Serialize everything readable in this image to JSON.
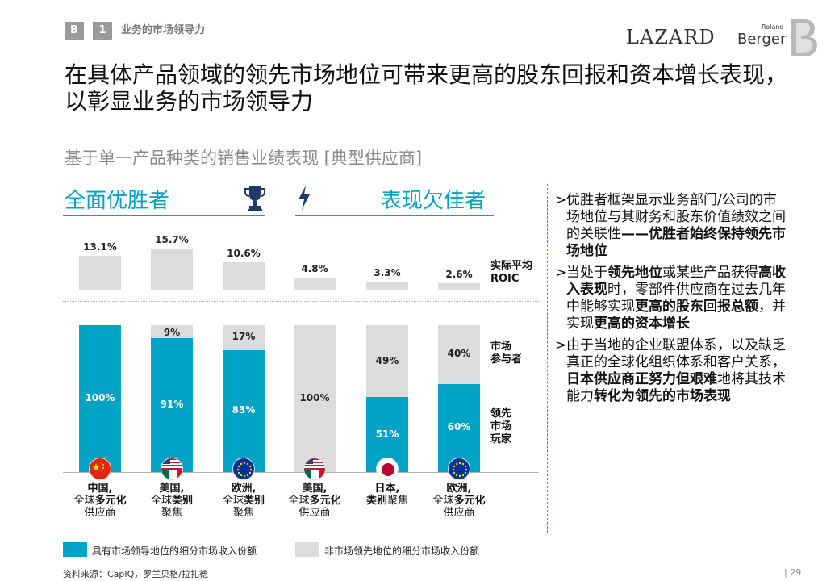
{
  "header": {
    "badge_b": "B",
    "badge_1": "1",
    "section": "业务的市场领导力",
    "logo_lazard": "LAZARD",
    "logo_roland": "Roland",
    "logo_berger": "Berger"
  },
  "title": "在具体产品领域的领先市场地位可带来更高的股东回报和资本增长表现，以彰显业务的市场领导力",
  "subtitle": "基于单一产品种类的销售业绩表现 [典型供应商]",
  "winners_heading": "全面优胜者",
  "losers_heading": "表现欠佳者",
  "row_labels": {
    "roic": [
      "实际平均",
      "ROIC"
    ],
    "participants": [
      "市场",
      "参与者"
    ],
    "leaders": [
      "领先",
      "市场",
      "玩家"
    ]
  },
  "chart_data": {
    "type": "bar",
    "title": "基于单一产品种类的销售业绩表现 [典型供应商]",
    "categories": [
      "中国, 全球多元化供应商",
      "美国, 全球类别聚焦",
      "欧洲, 全球类别聚焦",
      "美国, 全球多元化供应商",
      "日本, 类别聚焦",
      "欧洲, 全球多元化供应商"
    ],
    "roic": {
      "name": "实际平均ROIC",
      "values": [
        13.1,
        15.7,
        10.6,
        4.8,
        3.3,
        2.6
      ],
      "labels": [
        "13.1%",
        "15.7%",
        "10.6%",
        "4.8%",
        "3.3%",
        "2.6%"
      ]
    },
    "series": [
      {
        "name": "具有市场领导地位的细分市场收入份额",
        "values": [
          100,
          91,
          83,
          0,
          51,
          60
        ],
        "labels": [
          "100%",
          "91%",
          "83%",
          "",
          "51%",
          "60%"
        ],
        "color": "#00a3c4"
      },
      {
        "name": "非市场领先地位的细分市场收入份额",
        "values": [
          0,
          9,
          17,
          100,
          49,
          40
        ],
        "labels": [
          "",
          "9%",
          "17%",
          "100%",
          "49%",
          "40%"
        ],
        "color": "#dcdcdc"
      }
    ],
    "ylim": [
      0,
      100
    ],
    "groups": [
      "全面优胜者",
      "表现欠佳者"
    ]
  },
  "categories": [
    {
      "line1": "中国,",
      "line2a": "全球",
      "line2b": "多元化",
      "line2b_bold": true,
      "line3": "供应商",
      "flag": "china-flag-icon"
    },
    {
      "line1": "美国,",
      "line2a": "全球",
      "line2b": "类别",
      "line2b_bold": true,
      "line3": "聚焦",
      "flag": "usa-mexico-flag-icon"
    },
    {
      "line1": "欧洲,",
      "line2a": "全球",
      "line2b": "类别",
      "line2b_bold": true,
      "line3": "聚焦",
      "flag": "eu-flag-icon"
    },
    {
      "line1": "美国,",
      "line2a": "全球",
      "line2b": "多元化",
      "line2b_bold": true,
      "line3": "供应商",
      "flag": "usa-mexico-flag-icon"
    },
    {
      "line1": "日本,",
      "line2a": "",
      "line2b": "类别",
      "line2b_bold": true,
      "line2c": "聚焦",
      "line3": "",
      "flag": "japan-flag-icon"
    },
    {
      "line1": "欧洲,",
      "line2a": "全球",
      "line2b": "多元化",
      "line2b_bold": true,
      "line3": "供应商",
      "flag": "eu-flag-icon"
    }
  ],
  "panel": {
    "p1_normal": "优胜者框架显示业务部门/公司的市场地位与其财务和股东价值绩效之间的关联性",
    "p1_bold": "——优胜者始终保持领先市场地位",
    "p2_a": "当处于",
    "p2_b": "领先地位",
    "p2_c": "或某些产品获得",
    "p2_d": "高收入表现",
    "p2_e": "时，零部件供应商在过去几年中能够实现",
    "p2_f": "更高的股东回报总额",
    "p2_g": "，并实现",
    "p2_h": "更高的资本增长",
    "p3_a": "由于当地的企业联盟体系，以及缺乏真正的全球化组织体系和客户关系，",
    "p3_b": "日本供应商正努力但艰难",
    "p3_c": "地将其技术能力",
    "p3_d": "转化为领先的市场表现",
    "marker": ">"
  },
  "legend": {
    "leader": "具有市场领导地位的细分市场收入份额",
    "nonleader": "非市场领先地位的细分市场收入份额"
  },
  "footer": "资料来源：CapIQ，罗兰贝格/拉扎德",
  "page_number": "29",
  "colors": {
    "accent": "#00a3c4",
    "grey": "#dcdcdc",
    "badge": "#9a9a9a"
  }
}
